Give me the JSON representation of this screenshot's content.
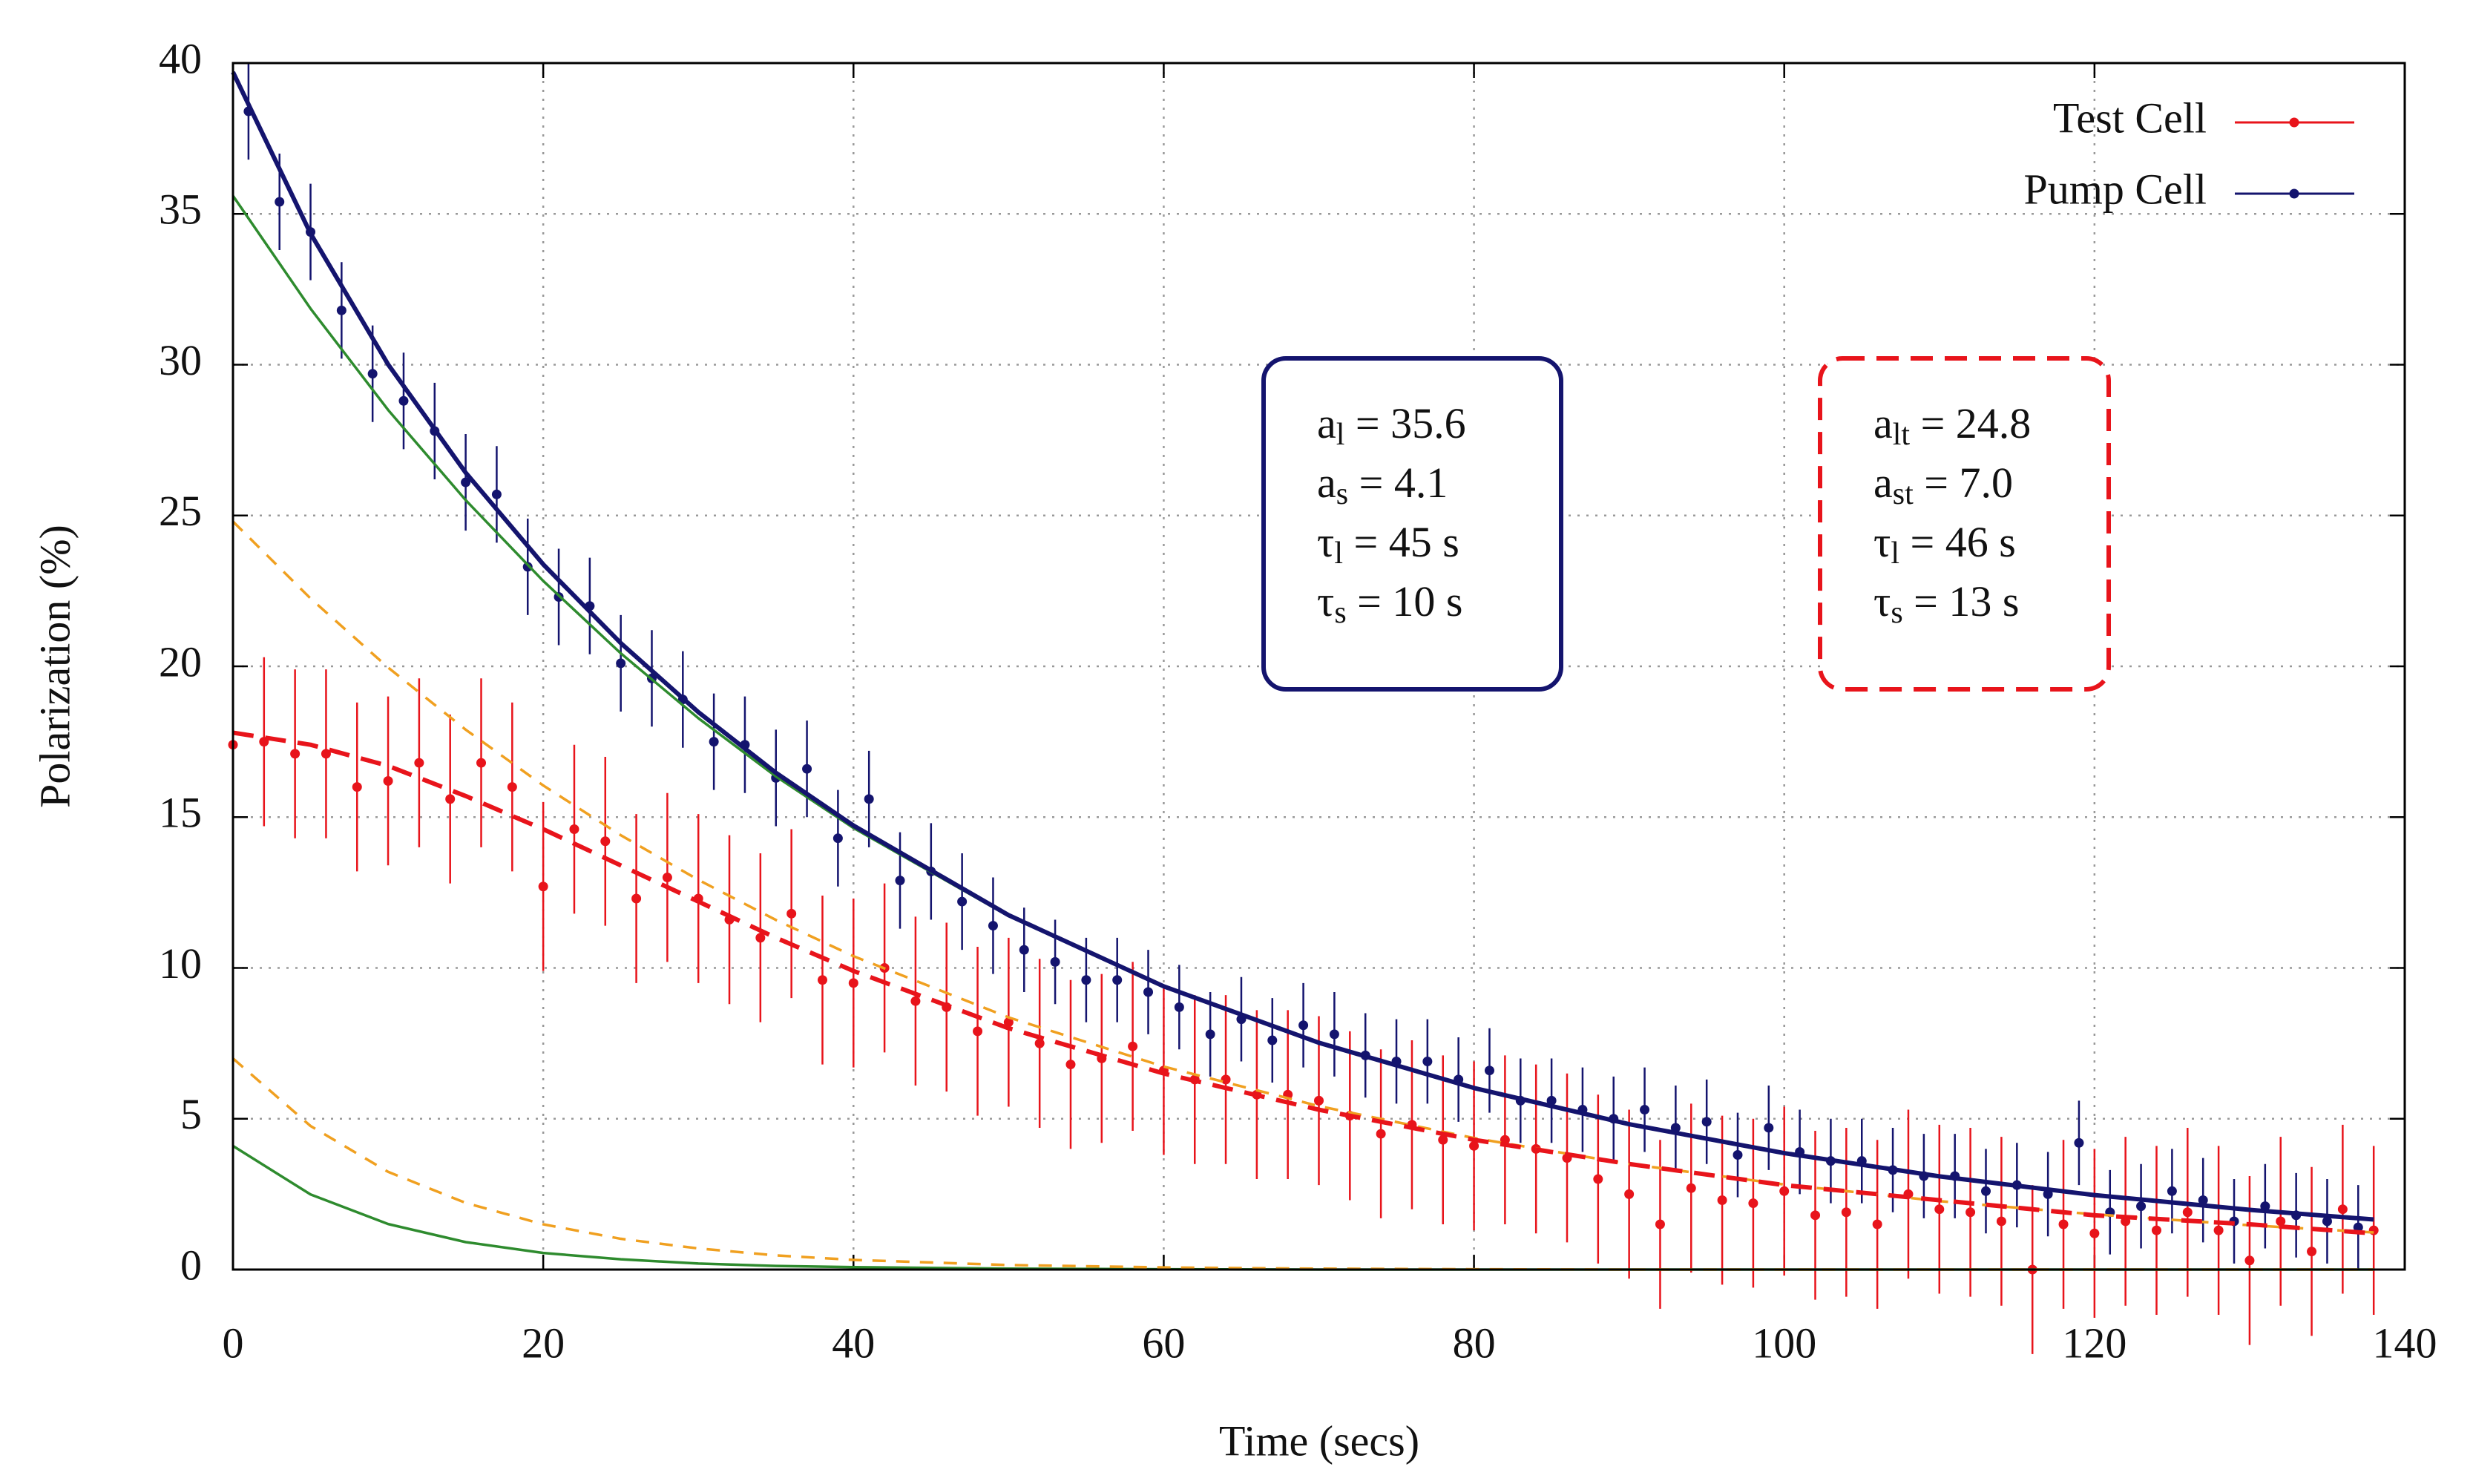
{
  "chart_data": {
    "type": "scatter",
    "x_label": "Time (secs)",
    "y_label": "Polarization (%)",
    "xlim": [
      0,
      140
    ],
    "xticks": [
      0,
      20,
      40,
      60,
      80,
      100,
      120,
      140
    ],
    "ylim": [
      0,
      40
    ],
    "yticks": [
      0,
      5,
      10,
      15,
      20,
      25,
      30,
      35,
      40
    ],
    "grid": true,
    "legend": "top-right",
    "series": [
      {
        "name": "Test Cell",
        "color": "#e8141b",
        "x": [
          0,
          2,
          4,
          6,
          8,
          10,
          12,
          14,
          16,
          18,
          20,
          22,
          24,
          26,
          28,
          30,
          32,
          34,
          36,
          38,
          40,
          42,
          44,
          46,
          48,
          50,
          52,
          54,
          56,
          58,
          60,
          62,
          64,
          66,
          68,
          70,
          72,
          74,
          76,
          78,
          80,
          82,
          84,
          86,
          88,
          90,
          92,
          94,
          96,
          98,
          100,
          102,
          104,
          106,
          108,
          110,
          112,
          114,
          116,
          118,
          120,
          122,
          124,
          126,
          128,
          130,
          132,
          134,
          136,
          138
        ],
        "values": [
          17.4,
          17.5,
          17.1,
          17.1,
          16.0,
          16.2,
          16.8,
          15.6,
          16.8,
          16.0,
          12.7,
          14.6,
          14.2,
          12.3,
          13.0,
          12.3,
          11.6,
          11.0,
          11.8,
          9.6,
          9.5,
          10.0,
          8.9,
          8.7,
          7.9,
          8.2,
          7.5,
          6.8,
          7.0,
          7.4,
          6.6,
          6.3,
          6.3,
          5.8,
          5.8,
          5.6,
          5.1,
          4.5,
          4.8,
          4.3,
          4.1,
          4.3,
          4.0,
          3.7,
          3.0,
          2.5,
          1.5,
          2.7,
          2.3,
          2.2,
          2.6,
          1.8,
          1.9,
          1.5,
          2.5,
          2.0,
          1.9,
          1.6,
          0.0,
          1.5,
          1.2,
          1.6,
          1.3,
          1.9,
          1.3,
          0.3,
          1.6,
          0.6,
          2.0,
          1.3
        ],
        "errors": [
          2.8,
          2.8,
          2.8,
          2.8,
          2.8,
          2.8,
          2.8,
          2.8,
          2.8,
          2.8,
          2.8,
          2.8,
          2.8,
          2.8,
          2.8,
          2.8,
          2.8,
          2.8,
          2.8,
          2.8,
          2.8,
          2.8,
          2.8,
          2.8,
          2.8,
          2.8,
          2.8,
          2.8,
          2.8,
          2.8,
          2.8,
          2.8,
          2.8,
          2.8,
          2.8,
          2.8,
          2.8,
          2.8,
          2.8,
          2.8,
          2.8,
          2.8,
          2.8,
          2.8,
          2.8,
          2.8,
          2.8,
          2.8,
          2.8,
          2.8,
          2.8,
          2.8,
          2.8,
          2.8,
          2.8,
          2.8,
          2.8,
          2.8,
          2.8,
          2.8,
          2.8,
          2.8,
          2.8,
          2.8,
          2.8,
          2.8,
          2.8,
          2.8,
          2.8,
          2.8
        ]
      },
      {
        "name": "Pump Cell",
        "color": "#14146e",
        "x": [
          1,
          3,
          5,
          7,
          9,
          11,
          13,
          15,
          17,
          19,
          21,
          23,
          25,
          27,
          29,
          31,
          33,
          35,
          37,
          39,
          41,
          43,
          45,
          47,
          49,
          51,
          53,
          55,
          57,
          59,
          61,
          63,
          65,
          67,
          69,
          71,
          73,
          75,
          77,
          79,
          81,
          83,
          85,
          87,
          89,
          91,
          93,
          95,
          97,
          99,
          101,
          103,
          105,
          107,
          109,
          111,
          113,
          115,
          117,
          119,
          121,
          123,
          125,
          127,
          129,
          131,
          133,
          135,
          137
        ],
        "values": [
          38.4,
          35.4,
          34.4,
          31.8,
          29.7,
          28.8,
          27.8,
          26.1,
          25.7,
          23.3,
          22.3,
          22.0,
          20.1,
          19.6,
          18.9,
          17.5,
          17.4,
          16.3,
          16.6,
          14.3,
          15.6,
          12.9,
          13.2,
          12.2,
          11.4,
          10.6,
          10.2,
          9.6,
          9.6,
          9.2,
          8.7,
          7.8,
          8.3,
          7.6,
          8.1,
          7.8,
          7.1,
          6.9,
          6.9,
          6.3,
          6.6,
          5.6,
          5.6,
          5.3,
          5.0,
          5.3,
          4.7,
          4.9,
          3.8,
          4.7,
          3.9,
          3.6,
          3.6,
          3.3,
          3.1,
          3.1,
          2.6,
          2.8,
          2.5,
          4.2,
          1.9,
          2.1,
          2.6,
          2.3,
          1.6,
          2.1,
          1.8,
          1.6,
          1.4
        ],
        "errors": [
          1.6,
          1.6,
          1.6,
          1.6,
          1.6,
          1.6,
          1.6,
          1.6,
          1.6,
          1.6,
          1.6,
          1.6,
          1.6,
          1.6,
          1.6,
          1.6,
          1.6,
          1.6,
          1.6,
          1.6,
          1.6,
          1.6,
          1.6,
          1.6,
          1.6,
          1.4,
          1.4,
          1.4,
          1.4,
          1.4,
          1.4,
          1.4,
          1.4,
          1.4,
          1.4,
          1.4,
          1.4,
          1.4,
          1.4,
          1.4,
          1.4,
          1.4,
          1.4,
          1.4,
          1.4,
          1.4,
          1.4,
          1.4,
          1.4,
          1.4,
          1.4,
          1.4,
          1.4,
          1.4,
          1.4,
          1.4,
          1.4,
          1.4,
          1.4,
          1.4,
          1.4,
          1.4,
          1.4,
          1.4,
          1.4,
          1.4,
          1.4,
          1.4,
          1.4
        ]
      }
    ],
    "curve_x": [
      0,
      5,
      10,
      15,
      20,
      25,
      30,
      35,
      40,
      50,
      60,
      70,
      80,
      90,
      100,
      110,
      120,
      130,
      138
    ],
    "fit_curves": [
      {
        "color": "#2e8b2e",
        "dashed": false,
        "values": [
          35.6,
          31.86,
          28.5,
          25.51,
          22.83,
          20.43,
          18.28,
          16.35,
          14.64,
          11.72,
          9.38,
          7.52,
          6.02,
          4.82,
          3.86,
          3.09,
          2.47,
          1.98,
          1.66
        ]
      },
      {
        "color": "#2e8b2e",
        "dashed": false,
        "values": [
          4.1,
          2.49,
          1.51,
          0.91,
          0.55,
          0.34,
          0.2,
          0.12,
          0.08,
          0.03,
          0.01,
          0,
          0,
          0,
          0,
          0,
          0,
          0,
          0
        ]
      },
      {
        "color": "#f0a020",
        "dashed": true,
        "values": [
          24.8,
          22.25,
          19.96,
          17.9,
          16.05,
          14.4,
          12.92,
          11.59,
          10.39,
          8.36,
          6.73,
          5.42,
          4.36,
          3.5,
          2.82,
          2.27,
          1.83,
          1.47,
          1.23
        ]
      },
      {
        "color": "#f0a020",
        "dashed": true,
        "values": [
          7,
          4.76,
          3.24,
          2.21,
          1.5,
          1.02,
          0.7,
          0.47,
          0.32,
          0.15,
          0.07,
          0.03,
          0.01,
          0,
          0,
          0,
          0,
          0,
          0
        ]
      },
      {
        "color": "#e8141b",
        "dashed": true,
        "values": [
          17.8,
          17.4,
          16.7,
          15.7,
          14.6,
          13.4,
          12.2,
          11.0,
          9.9,
          8.0,
          6.5,
          5.3,
          4.3,
          3.5,
          2.8,
          2.3,
          1.8,
          1.5,
          1.2
        ]
      },
      {
        "color": "#14146e",
        "dashed": false,
        "values": [
          39.7,
          34.35,
          30.01,
          26.42,
          23.38,
          20.77,
          18.48,
          16.47,
          14.72,
          11.75,
          9.39,
          7.52,
          6.02,
          4.82,
          3.86,
          3.09,
          2.47,
          1.98,
          1.66
        ]
      }
    ],
    "annotations": [
      {
        "color": "#14146e",
        "dashed": false,
        "lines": [
          {
            "base": "a",
            "sub": "l",
            "rest": " = 35.6"
          },
          {
            "base": "a",
            "sub": "s",
            "rest": " = 4.1"
          },
          {
            "base": "τ",
            "sub": "l",
            "rest": " = 45 s"
          },
          {
            "base": "τ",
            "sub": "s",
            "rest": " = 10 s"
          }
        ]
      },
      {
        "color": "#e8141b",
        "dashed": true,
        "lines": [
          {
            "base": "a",
            "sub": "lt",
            "rest": " = 24.8"
          },
          {
            "base": "a",
            "sub": "st",
            "rest": " = 7.0"
          },
          {
            "base": "τ",
            "sub": "l",
            "rest": " = 46 s"
          },
          {
            "base": "τ",
            "sub": "s",
            "rest": " = 13 s"
          }
        ]
      }
    ]
  }
}
